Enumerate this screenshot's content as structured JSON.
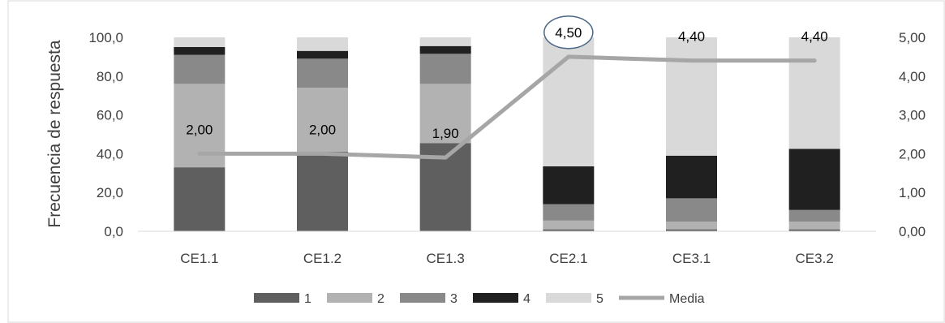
{
  "chart_data": {
    "type": "bar",
    "stacked": true,
    "categories": [
      "CE1.1",
      "CE1.2",
      "CE1.3",
      "CE2.1",
      "CE3.1",
      "CE3.2"
    ],
    "series": [
      {
        "name": "1",
        "values": [
          33.0,
          41.0,
          45.5,
          1.0,
          1.0,
          1.0
        ],
        "color": "#5f5f5f"
      },
      {
        "name": "2",
        "values": [
          43.0,
          33.0,
          30.5,
          4.5,
          4.0,
          4.0
        ],
        "color": "#b2b2b2"
      },
      {
        "name": "3",
        "values": [
          15.0,
          15.0,
          15.5,
          8.5,
          12.0,
          6.0
        ],
        "color": "#898989"
      },
      {
        "name": "4",
        "values": [
          4.0,
          4.0,
          4.0,
          19.5,
          22.0,
          31.5
        ],
        "color": "#202020"
      },
      {
        "name": "5",
        "values": [
          5.0,
          7.0,
          4.5,
          66.5,
          61.0,
          57.5
        ],
        "color": "#d9d9d9"
      }
    ],
    "line_series": {
      "name": "Media",
      "values": [
        2.0,
        2.0,
        1.9,
        4.5,
        4.4,
        4.4
      ],
      "labels": [
        "2,00",
        "2,00",
        "1,90",
        "4,50",
        "4,40",
        "4,40"
      ],
      "color": "#a6a6a6",
      "axis": "secondary",
      "highlighted_index": 3,
      "highlight_color": "#4a6787"
    },
    "ylabel": "Frecuencia de respuesta",
    "ylim": [
      0,
      100
    ],
    "y_ticks": [
      "0,0",
      "20,0",
      "40,0",
      "60,0",
      "80,0",
      "100,0"
    ],
    "y2lim": [
      0,
      5
    ],
    "y2_ticks": [
      "0,00",
      "1,00",
      "2,00",
      "3,00",
      "4,00",
      "5,00"
    ],
    "legend_position": "bottom",
    "grid": false
  }
}
